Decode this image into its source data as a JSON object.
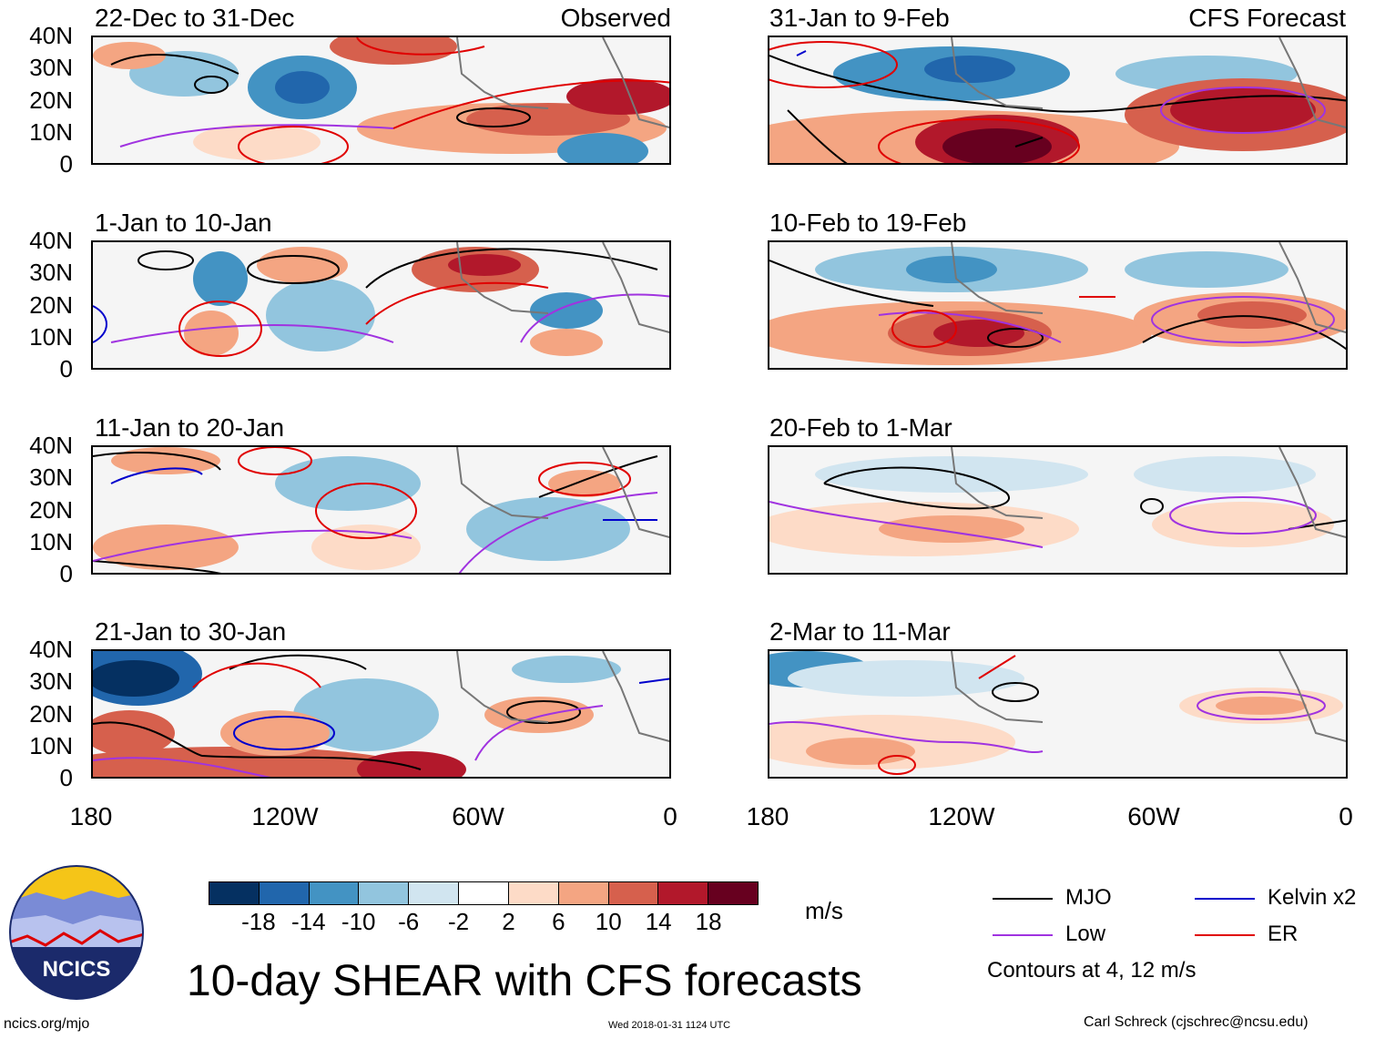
{
  "title": "10-day SHEAR with CFS forecasts",
  "observed_label": "Observed",
  "forecast_label": "CFS Forecast",
  "units": "m/s",
  "lat_labels": [
    "40N",
    "30N",
    "20N",
    "10N",
    "0"
  ],
  "lon_labels": [
    "180",
    "120W",
    "60W",
    "0"
  ],
  "panels_left": [
    {
      "period": "22-Dec to 31-Dec"
    },
    {
      "period": "1-Jan to 10-Jan"
    },
    {
      "period": "11-Jan to 20-Jan"
    },
    {
      "period": "21-Jan to 30-Jan"
    }
  ],
  "panels_right": [
    {
      "period": "31-Jan to 9-Feb"
    },
    {
      "period": "10-Feb to 19-Feb"
    },
    {
      "period": "20-Feb to 1-Mar"
    },
    {
      "period": "2-Mar to 11-Mar"
    }
  ],
  "colorbar": {
    "colors": [
      "#053061",
      "#2166ac",
      "#4393c3",
      "#92c5de",
      "#d1e5f0",
      "#ffffff",
      "#fddbc7",
      "#f4a582",
      "#d6604d",
      "#b2182b",
      "#67001f"
    ],
    "labels": [
      "-18",
      "-14",
      "-10",
      "-6",
      "-2",
      "2",
      "6",
      "10",
      "14",
      "18"
    ]
  },
  "legend": {
    "mjo": {
      "label": "MJO",
      "color": "#000000"
    },
    "kelvin": {
      "label": "Kelvin x2",
      "color": "#0000cc"
    },
    "low": {
      "label": "Low",
      "color": "#a033e0"
    },
    "er": {
      "label": "ER",
      "color": "#e00000"
    },
    "note": "Contours at 4, 12 m/s"
  },
  "logo": {
    "text": "NCICS"
  },
  "footer": {
    "url": "ncics.org/mjo",
    "timestamp": "Wed 2018-01-31 1124 UTC",
    "credit": "Carl Schreck (cjschrec@ncsu.edu)"
  }
}
